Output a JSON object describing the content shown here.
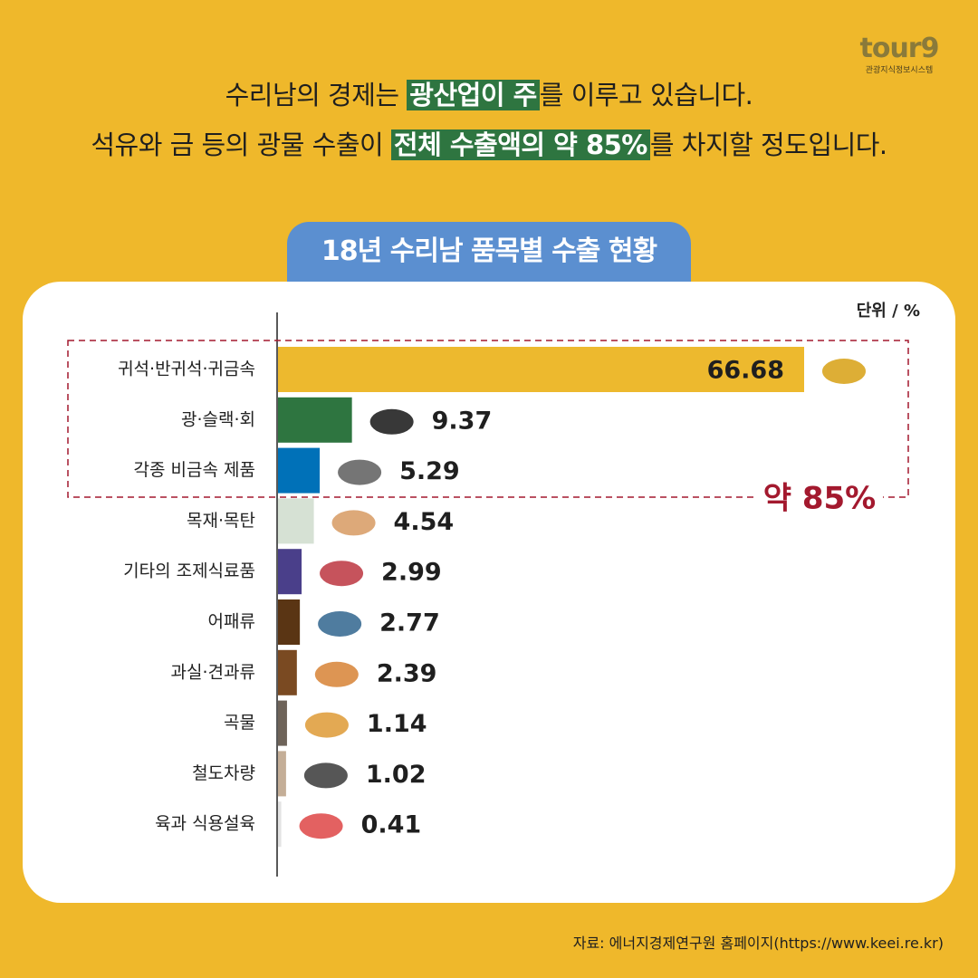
{
  "header": {
    "line1": [
      "수리남의 경제는 ",
      "광산업이 주",
      "를 이루고 있습니다."
    ],
    "line2": [
      "석유와 금 등의 광물 수출이 ",
      "전체 수출액의 약 85%",
      "를 차지할 정도입니다."
    ]
  },
  "logo": {
    "name": "tour9",
    "subtitle": "관광지식정보시스템"
  },
  "source": "자료: 에너지경제연구원 홈페이지(https://www.keei.re.kr)",
  "chart_data": {
    "type": "hbar",
    "title": "18년 수리남 품목별 수출 현황",
    "unit_label": "단위 / %",
    "categories": [
      "귀석·반귀석·귀금속",
      "광·슬랙·회",
      "각종 비금속 제품",
      "목재·목탄",
      "기타의 조제식료품",
      "어패류",
      "과실·견과류",
      "곡물",
      "철도차량",
      "육과 식용설육"
    ],
    "values": [
      66.68,
      9.37,
      5.29,
      4.54,
      2.99,
      2.77,
      2.39,
      1.14,
      1.02,
      0.41
    ],
    "colors": [
      "#EDB92E",
      "#2E7540",
      "#0071B8",
      "#D6E1D4",
      "#4A3F8A",
      "#5A3514",
      "#7A4A22",
      "#6E6359",
      "#C4AE97",
      "#E3E3E3"
    ],
    "annotation": "약 85%",
    "annotation_color": "#A3192E"
  }
}
